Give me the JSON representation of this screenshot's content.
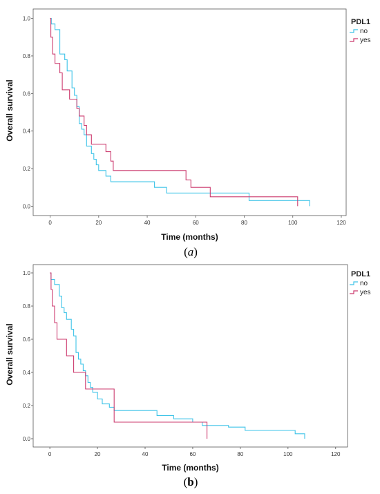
{
  "chart_data": [
    {
      "type": "line",
      "panel_label": "a",
      "xlabel": "Time (months)",
      "ylabel": "Overall survival",
      "xlim": [
        -7,
        122
      ],
      "ylim": [
        -0.05,
        1.05
      ],
      "xticks": [
        0,
        20,
        40,
        60,
        80,
        100,
        120
      ],
      "yticks": [
        0.0,
        0.2,
        0.4,
        0.6,
        0.8,
        1.0
      ],
      "tick_labels_x": [
        "0",
        "20",
        "40",
        "60",
        "80",
        "100",
        "120"
      ],
      "tick_labels_y": [
        "0.0",
        "0.2",
        "0.4",
        "0.6",
        "0.8",
        "1.0"
      ],
      "grid": false,
      "legend": {
        "title": "PDL1",
        "position": "top-right",
        "entries": [
          "no",
          "yes"
        ]
      },
      "series": [
        {
          "name": "no",
          "color": "#3ec4e8",
          "points": [
            [
              0,
              1.0
            ],
            [
              0.5,
              0.97
            ],
            [
              2,
              0.94
            ],
            [
              4,
              0.81
            ],
            [
              6,
              0.78
            ],
            [
              7,
              0.72
            ],
            [
              9,
              0.63
            ],
            [
              10,
              0.59
            ],
            [
              11,
              0.53
            ],
            [
              12,
              0.44
            ],
            [
              13,
              0.41
            ],
            [
              14,
              0.38
            ],
            [
              15,
              0.32
            ],
            [
              17,
              0.28
            ],
            [
              18,
              0.25
            ],
            [
              19,
              0.22
            ],
            [
              20,
              0.19
            ],
            [
              23,
              0.16
            ],
            [
              25,
              0.13
            ],
            [
              27,
              0.13
            ],
            [
              36,
              0.13
            ],
            [
              43,
              0.1
            ],
            [
              48,
              0.07
            ],
            [
              65,
              0.07
            ],
            [
              82,
              0.03
            ],
            [
              100,
              0.03
            ],
            [
              107,
              0.0
            ]
          ]
        },
        {
          "name": "yes",
          "color": "#cc3a6e",
          "points": [
            [
              0,
              1.0
            ],
            [
              0.3,
              0.9
            ],
            [
              1,
              0.81
            ],
            [
              2,
              0.76
            ],
            [
              4,
              0.71
            ],
            [
              5,
              0.62
            ],
            [
              8,
              0.57
            ],
            [
              11,
              0.52
            ],
            [
              12,
              0.48
            ],
            [
              14,
              0.43
            ],
            [
              15,
              0.38
            ],
            [
              17,
              0.33
            ],
            [
              23,
              0.29
            ],
            [
              25,
              0.24
            ],
            [
              26,
              0.19
            ],
            [
              56,
              0.14
            ],
            [
              58,
              0.1
            ],
            [
              66,
              0.05
            ],
            [
              102,
              0.0
            ]
          ]
        }
      ]
    },
    {
      "type": "line",
      "panel_label": "b",
      "xlabel": "Time (months)",
      "ylabel": "Overall survival",
      "xlim": [
        -7,
        125
      ],
      "ylim": [
        -0.05,
        1.05
      ],
      "xticks": [
        0,
        20,
        40,
        60,
        80,
        100,
        120
      ],
      "yticks": [
        0.0,
        0.2,
        0.4,
        0.6,
        0.8,
        1.0
      ],
      "tick_labels_x": [
        "0",
        "20",
        "40",
        "60",
        "80",
        "100",
        "120"
      ],
      "tick_labels_y": [
        "0.0",
        "0.2",
        "0.4",
        "0.6",
        "0.8",
        "1.0"
      ],
      "grid": false,
      "legend": {
        "title": "PDL1",
        "position": "top-right",
        "entries": [
          "no",
          "yes"
        ]
      },
      "series": [
        {
          "name": "no",
          "color": "#3ec4e8",
          "points": [
            [
              0,
              1.0
            ],
            [
              0.5,
              0.96
            ],
            [
              2,
              0.93
            ],
            [
              4,
              0.86
            ],
            [
              5,
              0.79
            ],
            [
              6,
              0.76
            ],
            [
              7,
              0.72
            ],
            [
              9,
              0.66
            ],
            [
              10,
              0.62
            ],
            [
              11,
              0.52
            ],
            [
              12,
              0.48
            ],
            [
              13,
              0.45
            ],
            [
              14,
              0.41
            ],
            [
              15,
              0.38
            ],
            [
              16,
              0.34
            ],
            [
              17,
              0.31
            ],
            [
              18,
              0.28
            ],
            [
              20,
              0.24
            ],
            [
              22,
              0.21
            ],
            [
              25,
              0.19
            ],
            [
              27,
              0.17
            ],
            [
              29,
              0.17
            ],
            [
              45,
              0.14
            ],
            [
              52,
              0.12
            ],
            [
              60,
              0.1
            ],
            [
              64,
              0.08
            ],
            [
              75,
              0.07
            ],
            [
              82,
              0.05
            ],
            [
              103,
              0.03
            ],
            [
              107,
              0.0
            ]
          ]
        },
        {
          "name": "yes",
          "color": "#cc3a6e",
          "points": [
            [
              0,
              1.0
            ],
            [
              0.5,
              0.9
            ],
            [
              1,
              0.8
            ],
            [
              2,
              0.7
            ],
            [
              3,
              0.6
            ],
            [
              7,
              0.5
            ],
            [
              10,
              0.4
            ],
            [
              15,
              0.3
            ],
            [
              27,
              0.1
            ],
            [
              66,
              0.0
            ]
          ]
        }
      ]
    }
  ]
}
